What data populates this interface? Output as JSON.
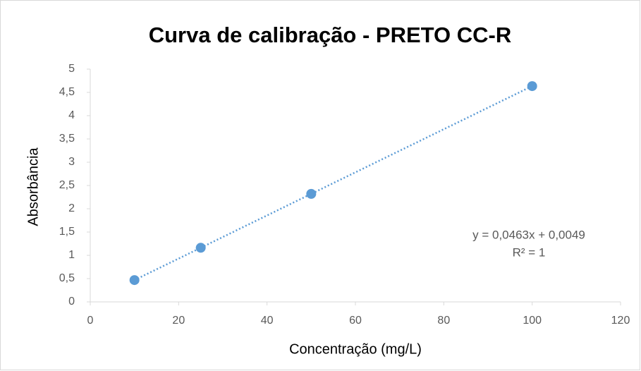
{
  "chart_data": {
    "type": "scatter",
    "title": "Curva de calibração - PRETO CC-R",
    "xlabel": "Concentração (mg/L)",
    "ylabel": "Absorbância",
    "x": [
      10,
      25,
      50,
      100
    ],
    "series": [
      {
        "color": "#5b9bd5",
        "values": [
          0.468,
          1.162,
          2.32,
          4.635
        ]
      }
    ],
    "trendline": true,
    "annotations": [
      "y = 0,0463x + 0,0049",
      "R² = 1"
    ],
    "xlim": [
      0,
      120
    ],
    "xticks": [
      0,
      20,
      40,
      60,
      80,
      100,
      120
    ],
    "ylim": [
      0,
      5
    ],
    "yticks": [
      0,
      {
        "value": 0.5,
        "label": "0,5"
      },
      1,
      {
        "value": 1.5,
        "label": "1,5"
      },
      2,
      {
        "value": 2.5,
        "label": "2,5"
      },
      3,
      {
        "value": 3.5,
        "label": "3,5"
      },
      4,
      {
        "value": 4.5,
        "label": "4,5"
      },
      5
    ],
    "grid": false
  }
}
